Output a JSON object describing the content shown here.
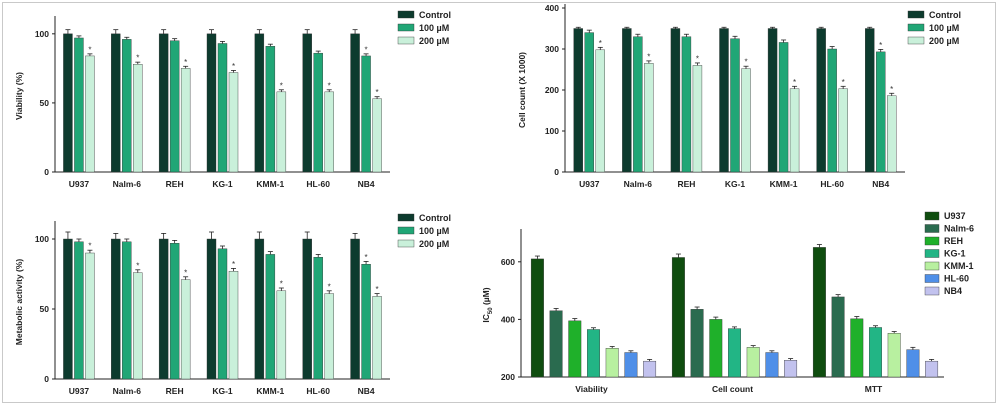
{
  "chart_data": [
    {
      "type": "bar",
      "id": "viability",
      "categories": [
        "U937",
        "Nalm-6",
        "REH",
        "KG-1",
        "KMM-1",
        "HL-60",
        "NB4"
      ],
      "series": [
        {
          "name": "Control",
          "color": "#0d3b2e",
          "values": [
            100,
            100,
            100,
            100,
            100,
            100,
            100
          ],
          "errors": [
            3,
            3,
            3,
            3,
            3,
            3,
            3
          ],
          "star": [
            false,
            false,
            false,
            false,
            false,
            false,
            false
          ]
        },
        {
          "name": "100 µM",
          "color": "#20a676",
          "values": [
            97,
            96,
            95,
            93,
            91,
            86,
            84
          ],
          "errors": [
            1.5,
            1.5,
            1.5,
            1.5,
            1.5,
            1.5,
            1.5
          ],
          "star": [
            false,
            false,
            false,
            false,
            false,
            false,
            true
          ]
        },
        {
          "name": "200 µM",
          "color": "#c9f0da",
          "values": [
            84,
            78,
            75,
            72,
            58,
            58,
            53
          ],
          "errors": [
            1.5,
            1.5,
            1.5,
            1.5,
            1.5,
            1.5,
            1.5
          ],
          "star": [
            true,
            true,
            true,
            true,
            true,
            true,
            true
          ]
        }
      ],
      "xlabel": "",
      "ylabel": "Viability (%)",
      "yticks": [
        0,
        50,
        100
      ],
      "ylim": [
        0,
        110
      ],
      "legend": "top-right",
      "grid": false
    },
    {
      "type": "bar",
      "id": "cell-count",
      "categories": [
        "U937",
        "Nalm-6",
        "REH",
        "KG-1",
        "KMM-1",
        "HL-60",
        "NB4"
      ],
      "series": [
        {
          "name": "Control",
          "color": "#0d3b2e",
          "values": [
            350,
            350,
            350,
            350,
            350,
            350,
            350
          ],
          "errors": [
            3,
            3,
            3,
            3,
            3,
            3,
            3
          ],
          "star": [
            false,
            false,
            false,
            false,
            false,
            false,
            false
          ]
        },
        {
          "name": "100 µM",
          "color": "#20a676",
          "values": [
            340,
            330,
            330,
            325,
            316,
            300,
            293
          ],
          "errors": [
            6,
            6,
            6,
            6,
            6,
            6,
            6
          ],
          "star": [
            false,
            false,
            false,
            false,
            false,
            false,
            true
          ]
        },
        {
          "name": "200 µM",
          "color": "#c9f0da",
          "values": [
            298,
            265,
            260,
            252,
            203,
            203,
            186
          ],
          "errors": [
            6,
            6,
            6,
            6,
            6,
            6,
            6
          ],
          "star": [
            true,
            true,
            true,
            true,
            true,
            true,
            true
          ]
        }
      ],
      "xlabel": "",
      "ylabel": "Cell count (X 1000)",
      "yticks": [
        0,
        100,
        200,
        300,
        400
      ],
      "ylim": [
        0,
        400
      ],
      "legend": "top-right",
      "grid": false
    },
    {
      "type": "bar",
      "id": "metabolic",
      "categories": [
        "U937",
        "Nalm-6",
        "REH",
        "KG-1",
        "KMM-1",
        "HL-60",
        "NB4"
      ],
      "series": [
        {
          "name": "Control",
          "color": "#0d3b2e",
          "values": [
            100,
            100,
            100,
            100,
            100,
            100,
            100
          ],
          "errors": [
            5,
            4,
            4,
            5,
            5,
            5,
            4
          ],
          "star": [
            false,
            false,
            false,
            false,
            false,
            false,
            false
          ]
        },
        {
          "name": "100 µM",
          "color": "#20a676",
          "values": [
            98,
            98,
            97,
            93,
            89,
            87,
            82
          ],
          "errors": [
            2,
            2,
            2,
            2,
            2,
            2,
            2
          ],
          "star": [
            false,
            false,
            false,
            false,
            false,
            false,
            true
          ]
        },
        {
          "name": "200 µM",
          "color": "#c9f0da",
          "values": [
            90,
            76,
            71,
            77,
            63,
            61,
            59
          ],
          "errors": [
            2,
            2,
            2,
            2,
            2,
            2,
            2
          ],
          "star": [
            true,
            true,
            true,
            true,
            true,
            true,
            true
          ]
        }
      ],
      "xlabel": "",
      "ylabel": "Metabolic activity (%)",
      "yticks": [
        0,
        50,
        100
      ],
      "ylim": [
        0,
        110
      ],
      "legend": "top-right",
      "grid": false
    },
    {
      "type": "bar",
      "id": "ic50",
      "categories": [
        "Viability",
        "Cell count",
        "MTT"
      ],
      "series": [
        {
          "name": "U937",
          "color": "#0f4d0f",
          "values": [
            610,
            615,
            650
          ],
          "errors": [
            10,
            12,
            10
          ]
        },
        {
          "name": "Nalm-6",
          "color": "#2a6b4f",
          "values": [
            430,
            435,
            478
          ],
          "errors": [
            8,
            8,
            8
          ]
        },
        {
          "name": "REH",
          "color": "#1fb02a",
          "values": [
            395,
            400,
            402
          ],
          "errors": [
            8,
            8,
            8
          ]
        },
        {
          "name": "KG-1",
          "color": "#22b585",
          "values": [
            365,
            368,
            372
          ],
          "errors": [
            6,
            6,
            6
          ]
        },
        {
          "name": "KMM-1",
          "color": "#b8f0a0",
          "values": [
            300,
            303,
            352
          ],
          "errors": [
            6,
            6,
            6
          ]
        },
        {
          "name": "HL-60",
          "color": "#4f8fe8",
          "values": [
            285,
            285,
            295
          ],
          "errors": [
            6,
            6,
            8
          ]
        },
        {
          "name": "NB4",
          "color": "#c2c2ee",
          "values": [
            255,
            258,
            255
          ],
          "errors": [
            6,
            6,
            6
          ]
        }
      ],
      "xlabel": "",
      "ylabel_main": "IC",
      "ylabel_sub": "50",
      "ylabel_unit": " (µM)",
      "yticks": [
        200,
        400,
        600
      ],
      "ylim": [
        200,
        700
      ],
      "legend": "top-right",
      "grid": false
    }
  ]
}
